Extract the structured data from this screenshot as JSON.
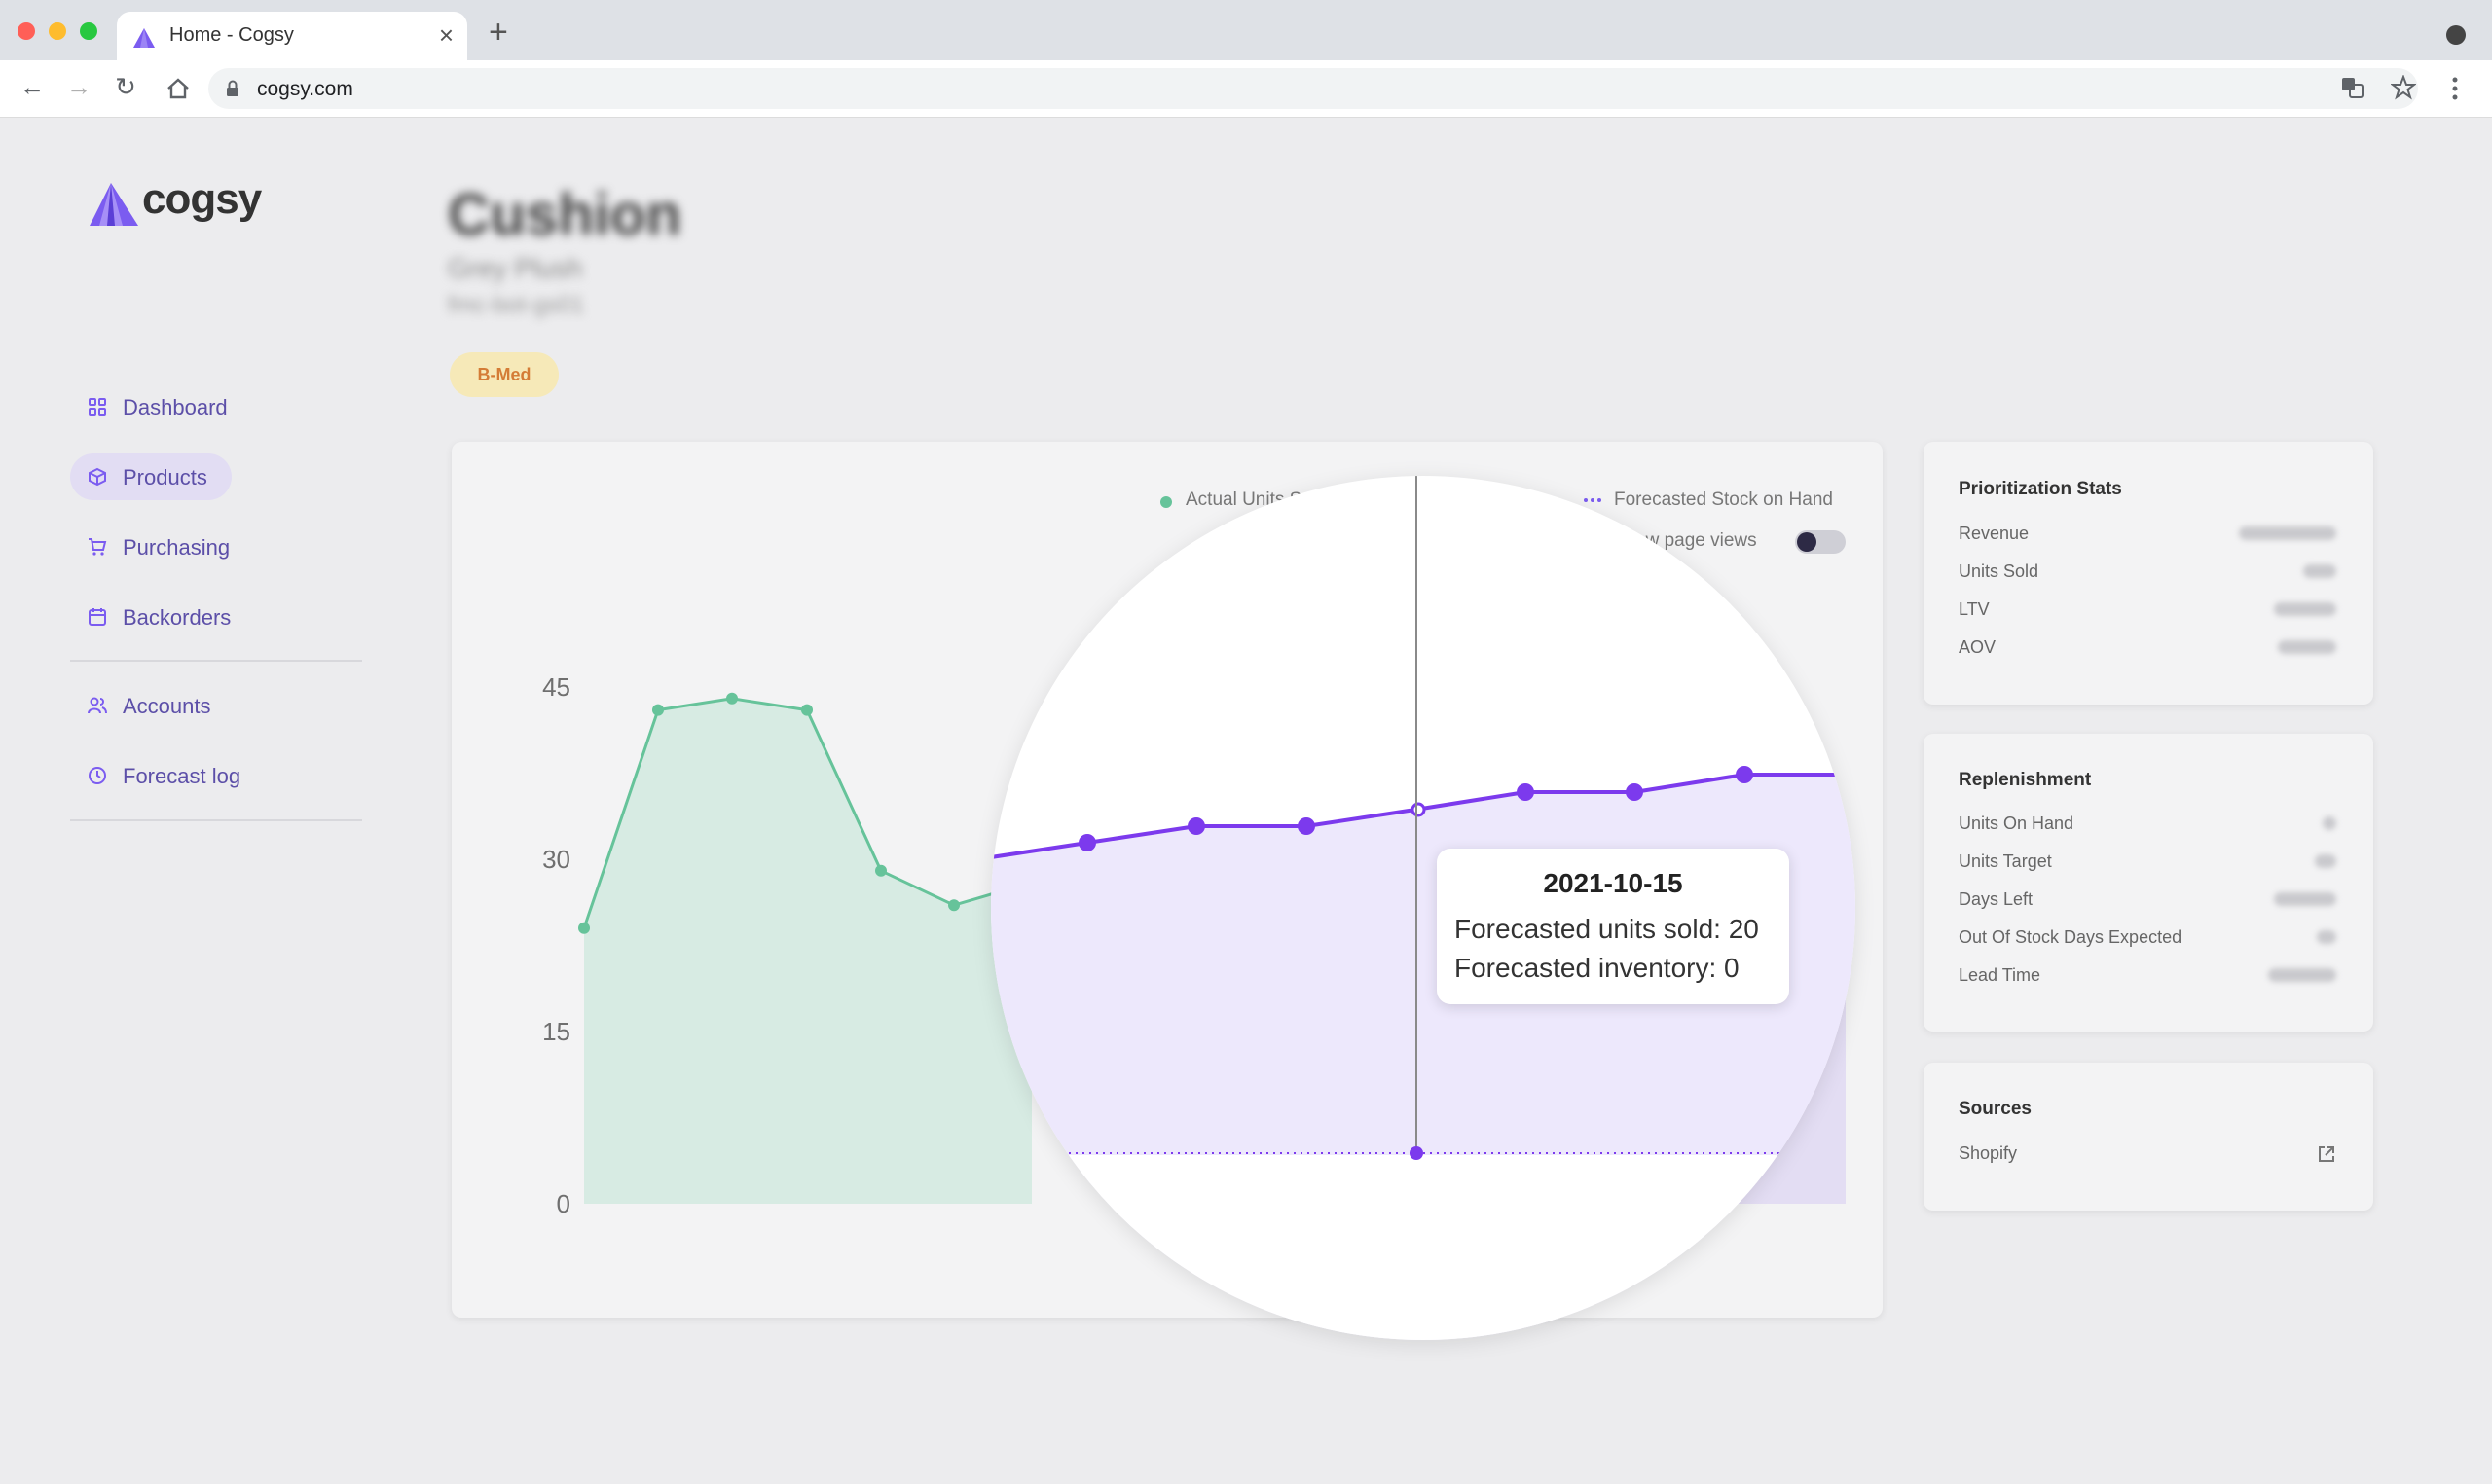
{
  "browser": {
    "tab_title": "Home - Cogsy",
    "url": "cogsy.com",
    "new_tab": "+",
    "close": "×"
  },
  "sidebar": {
    "logo": "cogsy",
    "items": [
      {
        "label": "Dashboard",
        "icon": "grid-icon"
      },
      {
        "label": "Products",
        "icon": "box-icon"
      },
      {
        "label": "Purchasing",
        "icon": "cart-icon"
      },
      {
        "label": "Backorders",
        "icon": "calendar-icon"
      },
      {
        "label": "Accounts",
        "icon": "users-icon"
      },
      {
        "label": "Forecast log",
        "icon": "clock-icon"
      }
    ]
  },
  "product": {
    "title": "Cushion",
    "subtitle": "Grey Plush",
    "sku": "fmc-bot-gs01",
    "badge": "B-Med"
  },
  "chart_data": {
    "type": "line",
    "yticks": [
      "45",
      "30",
      "15",
      "0"
    ],
    "ylim": [
      0,
      45
    ],
    "legend": [
      {
        "label": "Actual Units S",
        "color": "#66c39a"
      },
      {
        "label": "Forecasted Stock on Hand",
        "color": "#7b5cf0"
      }
    ],
    "toggle_label": "ow page views",
    "series": [
      {
        "name": "Actual Units S",
        "color": "#66c39a",
        "values": [
          24,
          43,
          44,
          43,
          29,
          26
        ]
      },
      {
        "name": "Forecasted Units Sold",
        "color": "#7c3aed",
        "values": [
          30,
          31.5,
          31.5,
          33,
          34.5,
          34.5,
          36,
          36
        ]
      }
    ],
    "tooltip": {
      "date": "2021-10-15",
      "forecasted_units_sold": "Forecasted units sold: 20",
      "forecasted_inventory": "Forecasted inventory: 0"
    }
  },
  "stats": {
    "prioritization": {
      "title": "Prioritization Stats",
      "rows": [
        "Revenue",
        "Units Sold",
        "LTV",
        "AOV"
      ]
    },
    "replenishment": {
      "title": "Replenishment",
      "rows": [
        "Units On Hand",
        "Units Target",
        "Days Left",
        "Out Of Stock Days Expected",
        "Lead Time"
      ]
    },
    "sources": {
      "title": "Sources",
      "rows": [
        "Shopify"
      ]
    }
  }
}
